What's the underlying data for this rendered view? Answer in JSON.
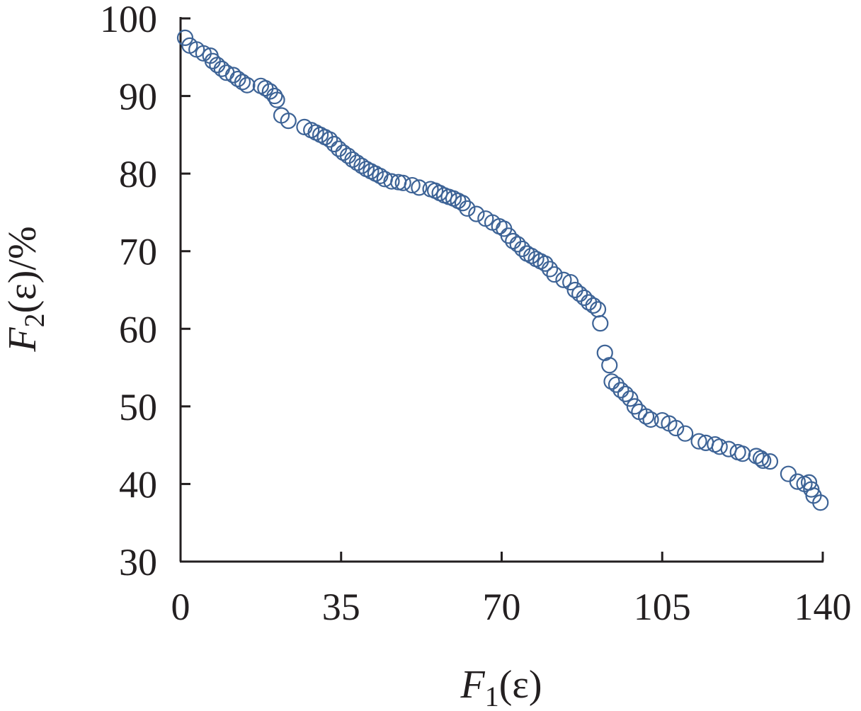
{
  "chart_data": {
    "type": "scatter",
    "title": "",
    "xlabel": {
      "main": "F",
      "sub": "1",
      "rest": "(ε)"
    },
    "ylabel": {
      "main": "F",
      "sub": "2",
      "rest": "(ε)/%"
    },
    "xlim": [
      0,
      140
    ],
    "ylim": [
      30,
      100
    ],
    "xticks": [
      0,
      35,
      70,
      105,
      140
    ],
    "yticks": [
      30,
      40,
      50,
      60,
      70,
      80,
      90,
      100
    ],
    "xtick_labels": [
      "0",
      "35",
      "70",
      "105",
      "140"
    ],
    "ytick_labels": [
      "30",
      "40",
      "50",
      "60",
      "70",
      "80",
      "90",
      "100"
    ],
    "grid": false,
    "marker": "open-circle",
    "color": "#3d6396",
    "series": [
      {
        "points": [
          [
            1,
            97.5
          ],
          [
            2,
            96.5
          ],
          [
            3.5,
            96
          ],
          [
            5,
            95.5
          ],
          [
            6.5,
            95.2
          ],
          [
            7,
            94.5
          ],
          [
            8,
            94
          ],
          [
            9,
            93.5
          ],
          [
            10,
            93
          ],
          [
            11.5,
            92.7
          ],
          [
            12.5,
            92.2
          ],
          [
            13.5,
            91.8
          ],
          [
            14.5,
            91.4
          ],
          [
            17.5,
            91.3
          ],
          [
            18.5,
            91
          ],
          [
            19.5,
            90.6
          ],
          [
            20.5,
            90
          ],
          [
            21,
            89.5
          ],
          [
            22,
            87.5
          ],
          [
            23.5,
            86.8
          ],
          [
            27,
            86
          ],
          [
            28.5,
            85.6
          ],
          [
            29.5,
            85.3
          ],
          [
            30.5,
            85
          ],
          [
            31.5,
            84.7
          ],
          [
            32.5,
            84.4
          ],
          [
            33.5,
            83.8
          ],
          [
            34.5,
            83.2
          ],
          [
            35.5,
            82.7
          ],
          [
            36.5,
            82.3
          ],
          [
            37.5,
            81.8
          ],
          [
            38.5,
            81.4
          ],
          [
            39.5,
            81
          ],
          [
            40.5,
            80.6
          ],
          [
            41.5,
            80.3
          ],
          [
            42.5,
            80
          ],
          [
            43.5,
            79.7
          ],
          [
            44.5,
            79.3
          ],
          [
            46,
            79
          ],
          [
            47.5,
            78.9
          ],
          [
            48.5,
            78.8
          ],
          [
            50.5,
            78.5
          ],
          [
            52,
            78.2
          ],
          [
            54.5,
            78
          ],
          [
            55.5,
            77.8
          ],
          [
            56.5,
            77.5
          ],
          [
            57.5,
            77.2
          ],
          [
            58.5,
            77
          ],
          [
            59.5,
            76.8
          ],
          [
            60.5,
            76.5
          ],
          [
            61.5,
            76.2
          ],
          [
            62.5,
            75.5
          ],
          [
            64.5,
            74.8
          ],
          [
            66.5,
            74.2
          ],
          [
            68,
            73.7
          ],
          [
            69.5,
            73.2
          ],
          [
            70.5,
            72.9
          ],
          [
            71.5,
            72
          ],
          [
            72.5,
            71.3
          ],
          [
            73.5,
            70.9
          ],
          [
            74.5,
            70.3
          ],
          [
            75.5,
            69.7
          ],
          [
            76.5,
            69.4
          ],
          [
            77.5,
            69
          ],
          [
            78.5,
            68.7
          ],
          [
            79.5,
            68.4
          ],
          [
            80.5,
            67.7
          ],
          [
            81.5,
            67
          ],
          [
            83.5,
            66.3
          ],
          [
            85,
            66
          ],
          [
            86,
            65
          ],
          [
            87,
            64.5
          ],
          [
            88,
            64
          ],
          [
            89,
            63.4
          ],
          [
            90,
            63
          ],
          [
            91,
            62.5
          ],
          [
            91.5,
            60.7
          ],
          [
            92.5,
            56.9
          ],
          [
            93.5,
            55.3
          ],
          [
            94,
            53.2
          ],
          [
            95,
            52.8
          ],
          [
            96,
            52.1
          ],
          [
            97,
            51.6
          ],
          [
            98,
            51
          ],
          [
            99,
            50
          ],
          [
            100,
            49.3
          ],
          [
            101.5,
            48.7
          ],
          [
            102.5,
            48.3
          ],
          [
            105,
            48.2
          ],
          [
            106.5,
            47.8
          ],
          [
            108,
            47.2
          ],
          [
            110,
            46.5
          ],
          [
            113,
            45.5
          ],
          [
            114.5,
            45.3
          ],
          [
            116.5,
            45.1
          ],
          [
            117.5,
            44.8
          ],
          [
            119.5,
            44.5
          ],
          [
            121.5,
            44.1
          ],
          [
            122.5,
            43.9
          ],
          [
            125.5,
            43.6
          ],
          [
            126.5,
            43.3
          ],
          [
            127,
            43
          ],
          [
            128.5,
            42.9
          ],
          [
            132.5,
            41.3
          ],
          [
            134.5,
            40.3
          ],
          [
            136,
            40
          ],
          [
            137,
            40.2
          ],
          [
            137.5,
            39.3
          ],
          [
            138,
            38.5
          ],
          [
            139.5,
            37.6
          ]
        ]
      }
    ]
  }
}
